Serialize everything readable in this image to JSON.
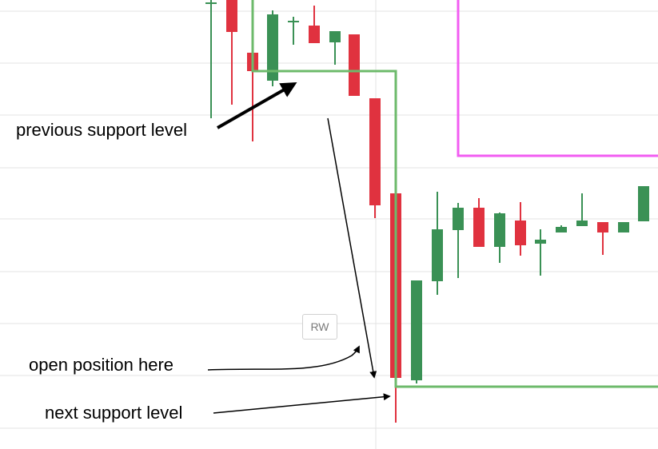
{
  "chart_data": {
    "type": "candlestick",
    "title": "",
    "xlabel": "",
    "ylabel": "",
    "ylim": [
      0,
      562
    ],
    "colors": {
      "up": "#3a9155",
      "down": "#e0323f",
      "support": "#6dba6b",
      "zone": "#f25cf2",
      "grid": "#e3e3e3"
    },
    "candles": [
      {
        "x": 264,
        "o": 557,
        "c": 559,
        "h": 562,
        "l": 414
      },
      {
        "x": 290,
        "o": 562,
        "c": 522,
        "h": 562,
        "l": 431
      },
      {
        "x": 316,
        "o": 496,
        "c": 473,
        "h": 562,
        "l": 385
      },
      {
        "x": 341,
        "o": 461,
        "c": 544,
        "h": 549,
        "l": 454
      },
      {
        "x": 367,
        "o": 536,
        "c": 536,
        "h": 541,
        "l": 506
      },
      {
        "x": 393,
        "o": 530,
        "c": 508,
        "h": 555,
        "l": 508
      },
      {
        "x": 419,
        "o": 509,
        "c": 523,
        "h": 523,
        "l": 481
      },
      {
        "x": 443,
        "o": 519,
        "c": 442,
        "h": 519,
        "l": 442
      },
      {
        "x": 469,
        "o": 439,
        "c": 305,
        "h": 439,
        "l": 289
      },
      {
        "x": 495,
        "o": 320,
        "c": 89,
        "h": 320,
        "l": 33
      },
      {
        "x": 521,
        "o": 86,
        "c": 211,
        "h": 211,
        "l": 82
      },
      {
        "x": 547,
        "o": 210,
        "c": 275,
        "h": 322,
        "l": 193
      },
      {
        "x": 573,
        "o": 274,
        "c": 302,
        "h": 308,
        "l": 214
      },
      {
        "x": 599,
        "o": 302,
        "c": 253,
        "h": 314,
        "l": 253
      },
      {
        "x": 625,
        "o": 253,
        "c": 295,
        "h": 296,
        "l": 233
      },
      {
        "x": 651,
        "o": 286,
        "c": 255,
        "h": 309,
        "l": 242
      },
      {
        "x": 676,
        "o": 257,
        "c": 262,
        "h": 275,
        "l": 217
      },
      {
        "x": 702,
        "o": 271,
        "c": 278,
        "h": 280,
        "l": 271
      },
      {
        "x": 728,
        "o": 279,
        "c": 286,
        "h": 320,
        "l": 279
      },
      {
        "x": 754,
        "o": 284,
        "c": 271,
        "h": 284,
        "l": 243
      },
      {
        "x": 780,
        "o": 271,
        "c": 284,
        "h": 284,
        "l": 271
      },
      {
        "x": 805,
        "o": 285,
        "c": 329,
        "h": 329,
        "l": 285
      }
    ],
    "annotations": [
      {
        "text": "previous support level"
      },
      {
        "text": "open position here"
      },
      {
        "text": "next support level"
      }
    ],
    "watermark": "RW"
  }
}
